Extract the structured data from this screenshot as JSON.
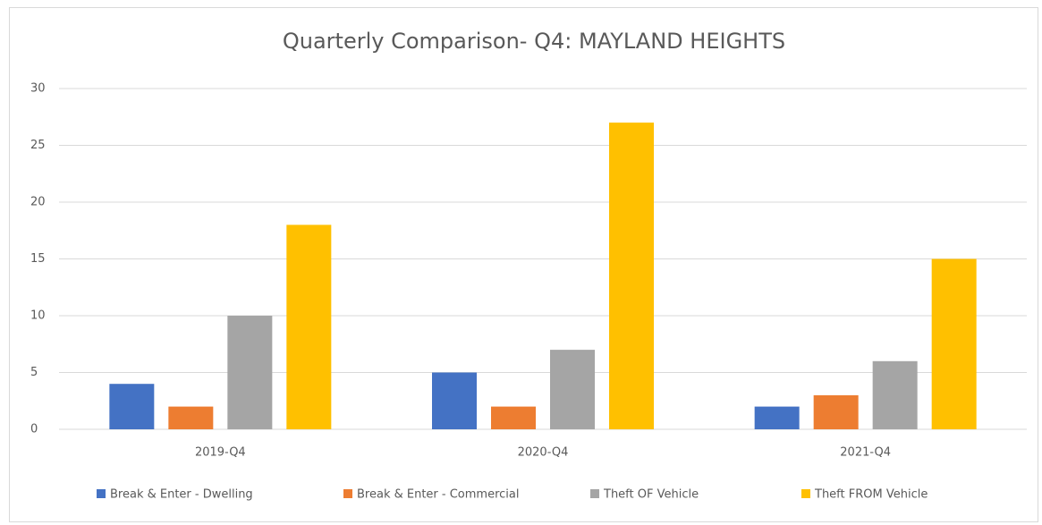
{
  "chart_data": {
    "type": "bar",
    "title": "Quarterly Comparison- Q4: MAYLAND HEIGHTS",
    "categories": [
      "2019-Q4",
      "2020-Q4",
      "2021-Q4"
    ],
    "series": [
      {
        "name": "Break & Enter - Dwelling",
        "color": "#4472c4",
        "values": [
          4,
          5,
          2
        ]
      },
      {
        "name": "Break & Enter - Commercial",
        "color": "#ed7d31",
        "values": [
          2,
          2,
          3
        ]
      },
      {
        "name": "Theft OF Vehicle",
        "color": "#a5a5a5",
        "values": [
          10,
          7,
          6
        ]
      },
      {
        "name": "Theft FROM Vehicle",
        "color": "#ffc000",
        "values": [
          18,
          27,
          15
        ]
      }
    ],
    "ylim": [
      0,
      30
    ],
    "yticks": [
      0,
      5,
      10,
      15,
      20,
      25,
      30
    ],
    "grid": true,
    "legend": "bottom"
  }
}
